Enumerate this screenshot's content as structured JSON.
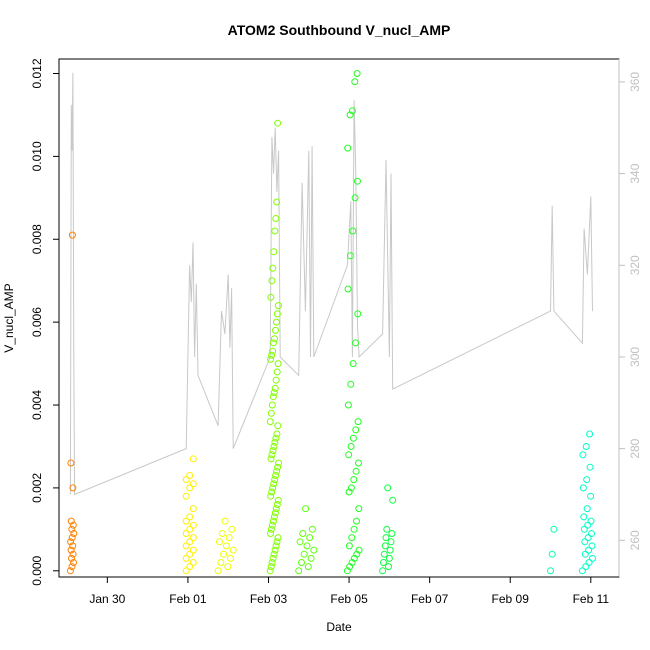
{
  "chart_data": {
    "type": "scatter",
    "title": "ATOM2 Southbound V_nucl_AMP",
    "xlabel": "Date",
    "ylabel": "V_nucl_AMP",
    "y2label": "",
    "xlim": [
      "2024-01-28T19:12:00",
      "2024-02-11T16:48:00"
    ],
    "ylim": [
      -0.00015,
      0.01235
    ],
    "y2lim": [
      252,
      365
    ],
    "x_ticks": [
      {
        "date": "2024-01-30",
        "label": "Jan 30"
      },
      {
        "date": "2024-02-01",
        "label": "Feb 01"
      },
      {
        "date": "2024-02-03",
        "label": "Feb 03"
      },
      {
        "date": "2024-02-05",
        "label": "Feb 05"
      },
      {
        "date": "2024-02-07",
        "label": "Feb 07"
      },
      {
        "date": "2024-02-09",
        "label": "Feb 09"
      },
      {
        "date": "2024-02-11",
        "label": "Feb 11"
      }
    ],
    "y_ticks": [
      {
        "value": 0.0,
        "label": "0.000"
      },
      {
        "value": 0.002,
        "label": "0.002"
      },
      {
        "value": 0.004,
        "label": "0.004"
      },
      {
        "value": 0.006,
        "label": "0.006"
      },
      {
        "value": 0.008,
        "label": "0.008"
      },
      {
        "value": 0.01,
        "label": "0.010"
      },
      {
        "value": 0.012,
        "label": "0.012"
      }
    ],
    "y2_ticks": [
      {
        "value": 260,
        "label": "260"
      },
      {
        "value": 280,
        "label": "280"
      },
      {
        "value": 300,
        "label": "300"
      },
      {
        "value": 320,
        "label": "320"
      },
      {
        "value": 340,
        "label": "340"
      },
      {
        "value": 360,
        "label": "360"
      }
    ],
    "points_color_note": "colored by time, orange to cyan",
    "point_clusters": [
      {
        "x_start": "2024-01-29T02:00:00",
        "x_end": "2024-01-29T04:00:00",
        "color": "#ff8000",
        "values": [
          0.0,
          0.0001,
          0.0002,
          0.0003,
          0.0004,
          0.0005,
          0.0006,
          0.0007,
          0.0008,
          0.0009,
          0.001,
          0.0011,
          0.0012,
          0.002,
          0.0026,
          0.0081
        ]
      },
      {
        "x_start": "2024-01-31T23:00:00",
        "x_end": "2024-02-01T05:00:00",
        "color": "#ffef00",
        "values": [
          0.0,
          0.0001,
          0.0002,
          0.0003,
          0.0004,
          0.0005,
          0.0006,
          0.0007,
          0.0008,
          0.0009,
          0.001,
          0.0011,
          0.0012,
          0.0013,
          0.0015,
          0.0018,
          0.002,
          0.0021,
          0.0022,
          0.0023,
          0.0027
        ]
      },
      {
        "x_start": "2024-02-01T18:00:00",
        "x_end": "2024-02-02T03:00:00",
        "color": "#efff00",
        "values": [
          0.0,
          0.0001,
          0.0002,
          0.0003,
          0.0004,
          0.0005,
          0.0006,
          0.0007,
          0.0008,
          0.0009,
          0.001,
          0.0012
        ]
      },
      {
        "x_start": "2024-02-03T01:00:00",
        "x_end": "2024-02-03T06:00:00",
        "color": "#80ff00",
        "values": [
          0.0,
          0.0001,
          0.0002,
          0.0003,
          0.0004,
          0.0005,
          0.0006,
          0.0007,
          0.0008,
          0.0009,
          0.001,
          0.0011,
          0.0012,
          0.0013,
          0.0014,
          0.0015,
          0.0016,
          0.0017,
          0.0018,
          0.0019,
          0.002,
          0.0021,
          0.0022,
          0.0023,
          0.0024,
          0.0025,
          0.0026,
          0.0027,
          0.0028,
          0.0029,
          0.003,
          0.0031,
          0.0032,
          0.0033,
          0.0035,
          0.0036,
          0.0038,
          0.004,
          0.0042,
          0.0043,
          0.0044,
          0.0046,
          0.0048,
          0.005,
          0.0051,
          0.0052,
          0.0053,
          0.0055,
          0.0056,
          0.0058,
          0.006,
          0.0062,
          0.0064,
          0.0066,
          0.007,
          0.0073,
          0.0077,
          0.0082,
          0.0085,
          0.0089,
          0.0108
        ]
      },
      {
        "x_start": "2024-02-03T18:00:00",
        "x_end": "2024-02-04T03:00:00",
        "color": "#60ff10",
        "values": [
          0.0,
          0.0001,
          0.0002,
          0.0003,
          0.0004,
          0.0005,
          0.0006,
          0.0007,
          0.0008,
          0.0009,
          0.001,
          0.0015
        ]
      },
      {
        "x_start": "2024-02-04T23:00:00",
        "x_end": "2024-02-05T06:00:00",
        "color": "#20ff20",
        "values": [
          0.0,
          0.0001,
          0.0002,
          0.0003,
          0.0004,
          0.0005,
          0.0006,
          0.0008,
          0.001,
          0.0012,
          0.0015,
          0.0019,
          0.002,
          0.0022,
          0.0024,
          0.0026,
          0.0028,
          0.003,
          0.0032,
          0.0034,
          0.0036,
          0.004,
          0.0045,
          0.005,
          0.0055,
          0.0062,
          0.0068,
          0.0076,
          0.0082,
          0.009,
          0.0094,
          0.0102,
          0.011,
          0.0111,
          0.0118,
          0.012
        ]
      },
      {
        "x_start": "2024-02-05T20:00:00",
        "x_end": "2024-02-06T02:00:00",
        "color": "#10ff40",
        "values": [
          0.0,
          0.0001,
          0.0002,
          0.0003,
          0.0004,
          0.0005,
          0.0006,
          0.0007,
          0.0008,
          0.0009,
          0.001,
          0.0017,
          0.002
        ]
      },
      {
        "x_start": "2024-02-10T00:00:00",
        "x_end": "2024-02-10T02:00:00",
        "color": "#00ffb0",
        "values": [
          0.0,
          0.0004,
          0.001
        ]
      },
      {
        "x_start": "2024-02-10T19:00:00",
        "x_end": "2024-02-11T01:00:00",
        "color": "#00ffc8",
        "values": [
          0.0,
          0.0001,
          0.0002,
          0.0003,
          0.0004,
          0.0005,
          0.0006,
          0.0007,
          0.0008,
          0.0009,
          0.001,
          0.0011,
          0.0012,
          0.0013,
          0.0015,
          0.0018,
          0.002,
          0.0022,
          0.0025,
          0.0028,
          0.003,
          0.0033
        ]
      }
    ],
    "line_series": {
      "name": "",
      "axis": "right",
      "color": "#c8c8c8",
      "points": [
        [
          "2024-01-29T02:00:00",
          270
        ],
        [
          "2024-01-29T02:30:00",
          355
        ],
        [
          "2024-01-29T03:00:00",
          345
        ],
        [
          "2024-01-29T03:30:00",
          362
        ],
        [
          "2024-01-29T04:00:00",
          300
        ],
        [
          "2024-01-29T04:30:00",
          270
        ],
        [
          "2024-01-31T23:00:00",
          280
        ],
        [
          "2024-02-01T00:00:00",
          300
        ],
        [
          "2024-02-01T01:00:00",
          320
        ],
        [
          "2024-02-01T02:00:00",
          312
        ],
        [
          "2024-02-01T03:00:00",
          325
        ],
        [
          "2024-02-01T04:00:00",
          300
        ],
        [
          "2024-02-01T05:00:00",
          316
        ],
        [
          "2024-02-01T06:00:00",
          296
        ],
        [
          "2024-02-01T18:00:00",
          285
        ],
        [
          "2024-02-01T20:00:00",
          310
        ],
        [
          "2024-02-01T22:00:00",
          305
        ],
        [
          "2024-02-02T00:00:00",
          318
        ],
        [
          "2024-02-02T01:00:00",
          302
        ],
        [
          "2024-02-02T02:00:00",
          315
        ],
        [
          "2024-02-02T03:00:00",
          280
        ],
        [
          "2024-02-03T01:00:00",
          300
        ],
        [
          "2024-02-03T02:00:00",
          348
        ],
        [
          "2024-02-03T03:00:00",
          340
        ],
        [
          "2024-02-03T04:00:00",
          350
        ],
        [
          "2024-02-03T05:00:00",
          336
        ],
        [
          "2024-02-03T06:00:00",
          345
        ],
        [
          "2024-02-03T07:00:00",
          300
        ],
        [
          "2024-02-03T18:00:00",
          296
        ],
        [
          "2024-02-03T20:00:00",
          338
        ],
        [
          "2024-02-03T22:00:00",
          310
        ],
        [
          "2024-02-04T00:00:00",
          345
        ],
        [
          "2024-02-04T01:00:00",
          300
        ],
        [
          "2024-02-04T02:00:00",
          346
        ],
        [
          "2024-02-04T03:00:00",
          300
        ],
        [
          "2024-02-04T23:00:00",
          320
        ],
        [
          "2024-02-05T01:00:00",
          334
        ],
        [
          "2024-02-05T02:00:00",
          300
        ],
        [
          "2024-02-05T03:00:00",
          356
        ],
        [
          "2024-02-05T04:00:00",
          340
        ],
        [
          "2024-02-05T05:00:00",
          307
        ],
        [
          "2024-02-05T06:00:00",
          300
        ],
        [
          "2024-02-05T20:00:00",
          305
        ],
        [
          "2024-02-05T22:00:00",
          343
        ],
        [
          "2024-02-06T00:00:00",
          300
        ],
        [
          "2024-02-06T01:00:00",
          340
        ],
        [
          "2024-02-06T02:00:00",
          293
        ],
        [
          "2024-02-10T00:00:00",
          310
        ],
        [
          "2024-02-10T01:00:00",
          333
        ],
        [
          "2024-02-10T02:00:00",
          310
        ],
        [
          "2024-02-10T19:00:00",
          303
        ],
        [
          "2024-02-10T20:00:00",
          328
        ],
        [
          "2024-02-10T22:00:00",
          318
        ],
        [
          "2024-02-11T00:00:00",
          335
        ],
        [
          "2024-02-11T01:00:00",
          310
        ]
      ]
    },
    "grid": false,
    "legend": "none"
  }
}
